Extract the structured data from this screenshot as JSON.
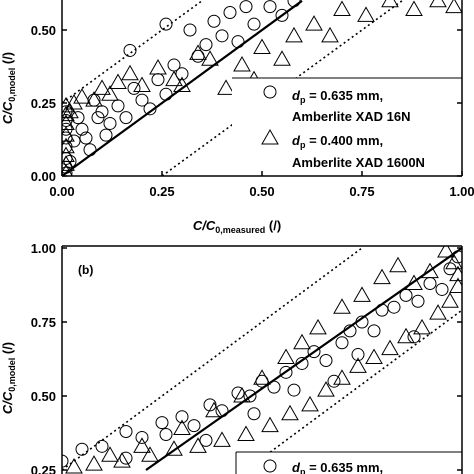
{
  "chart_data": [
    {
      "type": "scatter",
      "panel_label": "",
      "xlabel_parts": {
        "main": "C/C",
        "sub": "0,measured",
        "unit": " (/)"
      },
      "ylabel_parts": {
        "main": "C/C",
        "sub": "0,model",
        "unit": " (/)"
      },
      "xlim": [
        0,
        1
      ],
      "ylim": [
        0,
        0.6
      ],
      "xticks": [
        0,
        0.25,
        0.5,
        0.75,
        1
      ],
      "xtick_labels": [
        "0.00",
        "0.25",
        "0.50",
        "0.75",
        "1.00"
      ],
      "yticks": [
        0,
        0.25,
        0.5
      ],
      "ytick_labels": [
        "0.00",
        "0.25",
        "0.50"
      ],
      "lines": [
        {
          "style": "solid",
          "x": [
            0,
            0.6
          ],
          "y": [
            0,
            0.6
          ]
        },
        {
          "style": "dotted",
          "x": [
            0,
            0.35
          ],
          "y": [
            0.25,
            0.6
          ]
        },
        {
          "style": "dotted",
          "x": [
            0.25,
            0.85
          ],
          "y": [
            0,
            0.6
          ]
        }
      ],
      "legend": {
        "placement": "right",
        "entries": [
          {
            "marker": "circle",
            "d": "d",
            "sub": "p",
            "value": " = 0.635 mm,",
            "resin": "Amberlite XAD 16N"
          },
          {
            "marker": "triangle",
            "d": "d",
            "sub": "p",
            "value": " = 0.400 mm,",
            "resin": "Amberlite XAD 1600N"
          }
        ]
      },
      "series": [
        {
          "marker": "circle",
          "points": [
            [
              0.01,
              0.01
            ],
            [
              0.01,
              0.03
            ],
            [
              0.01,
              0.06
            ],
            [
              0.01,
              0.1
            ],
            [
              0.01,
              0.13
            ],
            [
              0.01,
              0.16
            ],
            [
              0.01,
              0.19
            ],
            [
              0.01,
              0.22
            ],
            [
              0.02,
              0.05
            ],
            [
              0.03,
              0.12
            ],
            [
              0.04,
              0.2
            ],
            [
              0.05,
              0.16
            ],
            [
              0.06,
              0.13
            ],
            [
              0.07,
              0.09
            ],
            [
              0.08,
              0.26
            ],
            [
              0.09,
              0.2
            ],
            [
              0.1,
              0.22
            ],
            [
              0.11,
              0.14
            ],
            [
              0.12,
              0.18
            ],
            [
              0.14,
              0.24
            ],
            [
              0.16,
              0.2
            ],
            [
              0.18,
              0.3
            ],
            [
              0.2,
              0.26
            ],
            [
              0.22,
              0.23
            ],
            [
              0.24,
              0.33
            ],
            [
              0.26,
              0.28
            ],
            [
              0.28,
              0.38
            ],
            [
              0.3,
              0.35
            ],
            [
              0.32,
              0.5
            ],
            [
              0.34,
              0.41
            ],
            [
              0.36,
              0.45
            ],
            [
              0.38,
              0.53
            ],
            [
              0.4,
              0.48
            ],
            [
              0.42,
              0.56
            ],
            [
              0.44,
              0.46
            ],
            [
              0.46,
              0.58
            ],
            [
              0.48,
              0.52
            ],
            [
              0.52,
              0.58
            ],
            [
              0.55,
              0.55
            ],
            [
              0.58,
              0.6
            ],
            [
              0.17,
              0.43
            ],
            [
              0.26,
              0.52
            ]
          ]
        },
        {
          "marker": "triangle",
          "points": [
            [
              0.01,
              0.01
            ],
            [
              0.01,
              0.04
            ],
            [
              0.01,
              0.07
            ],
            [
              0.01,
              0.1
            ],
            [
              0.01,
              0.14
            ],
            [
              0.01,
              0.18
            ],
            [
              0.01,
              0.21
            ],
            [
              0.01,
              0.24
            ],
            [
              0.02,
              0.22
            ],
            [
              0.03,
              0.25
            ],
            [
              0.05,
              0.27
            ],
            [
              0.08,
              0.26
            ],
            [
              0.1,
              0.3
            ],
            [
              0.12,
              0.28
            ],
            [
              0.14,
              0.32
            ],
            [
              0.17,
              0.35
            ],
            [
              0.2,
              0.31
            ],
            [
              0.24,
              0.37
            ],
            [
              0.28,
              0.33
            ],
            [
              0.3,
              0.31
            ],
            [
              0.34,
              0.42
            ],
            [
              0.37,
              0.4
            ],
            [
              0.41,
              0.3
            ],
            [
              0.45,
              0.38
            ],
            [
              0.48,
              0.33
            ],
            [
              0.5,
              0.44
            ],
            [
              0.55,
              0.4
            ],
            [
              0.58,
              0.48
            ],
            [
              0.63,
              0.52
            ],
            [
              0.67,
              0.48
            ],
            [
              0.7,
              0.57
            ],
            [
              0.76,
              0.55
            ],
            [
              0.82,
              0.6
            ],
            [
              0.88,
              0.57
            ],
            [
              0.94,
              0.6
            ],
            [
              0.98,
              0.58
            ]
          ]
        }
      ]
    },
    {
      "type": "scatter",
      "panel_label": "(b)",
      "xlabel_parts": {
        "main": "",
        "sub": "",
        "unit": ""
      },
      "ylabel_parts": {
        "main": "C/C",
        "sub": "0,model",
        "unit": " (/)"
      },
      "xlim": [
        0,
        1
      ],
      "ylim": [
        0.25,
        1
      ],
      "xticks": [],
      "xtick_labels": [],
      "yticks": [
        0.25,
        0.5,
        0.75,
        1
      ],
      "ytick_labels": [
        "0.25",
        "0.50",
        "0.75",
        "1.00"
      ],
      "lines": [
        {
          "style": "solid",
          "x": [
            0.21,
            1
          ],
          "y": [
            0.25,
            1
          ]
        },
        {
          "style": "dotted",
          "x": [
            0,
            0.75
          ],
          "y": [
            0.25,
            1
          ]
        },
        {
          "style": "dotted",
          "x": [
            0.46,
            1
          ],
          "y": [
            0.25,
            0.79
          ]
        }
      ],
      "legend": {
        "placement": "bottom-right",
        "entries": [
          {
            "marker": "circle",
            "d": "d",
            "sub": "p",
            "value": " = 0.635 mm,",
            "resin": ""
          }
        ]
      },
      "series": [
        {
          "marker": "circle",
          "points": [
            [
              0.0,
              0.28
            ],
            [
              0.05,
              0.32
            ],
            [
              0.1,
              0.33
            ],
            [
              0.16,
              0.38
            ],
            [
              0.2,
              0.36
            ],
            [
              0.25,
              0.41
            ],
            [
              0.3,
              0.43
            ],
            [
              0.33,
              0.4
            ],
            [
              0.37,
              0.47
            ],
            [
              0.4,
              0.45
            ],
            [
              0.44,
              0.51
            ],
            [
              0.47,
              0.5
            ],
            [
              0.5,
              0.55
            ],
            [
              0.53,
              0.53
            ],
            [
              0.56,
              0.58
            ],
            [
              0.6,
              0.61
            ],
            [
              0.63,
              0.65
            ],
            [
              0.66,
              0.62
            ],
            [
              0.7,
              0.68
            ],
            [
              0.72,
              0.72
            ],
            [
              0.75,
              0.75
            ],
            [
              0.78,
              0.72
            ],
            [
              0.8,
              0.79
            ],
            [
              0.83,
              0.8
            ],
            [
              0.86,
              0.84
            ],
            [
              0.89,
              0.82
            ],
            [
              0.92,
              0.88
            ],
            [
              0.95,
              0.86
            ],
            [
              0.97,
              0.93
            ],
            [
              0.99,
              0.97
            ],
            [
              0.16,
              0.29
            ],
            [
              0.26,
              0.37
            ],
            [
              0.36,
              0.35
            ],
            [
              0.48,
              0.44
            ],
            [
              0.58,
              0.52
            ],
            [
              0.68,
              0.55
            ],
            [
              0.74,
              0.64
            ],
            [
              0.88,
              0.7
            ]
          ]
        },
        {
          "marker": "triangle",
          "points": [
            [
              0.03,
              0.26
            ],
            [
              0.08,
              0.27
            ],
            [
              0.15,
              0.28
            ],
            [
              0.22,
              0.3
            ],
            [
              0.28,
              0.32
            ],
            [
              0.34,
              0.33
            ],
            [
              0.4,
              0.35
            ],
            [
              0.46,
              0.37
            ],
            [
              0.52,
              0.4
            ],
            [
              0.57,
              0.44
            ],
            [
              0.62,
              0.47
            ],
            [
              0.66,
              0.52
            ],
            [
              0.7,
              0.56
            ],
            [
              0.74,
              0.6
            ],
            [
              0.78,
              0.63
            ],
            [
              0.82,
              0.66
            ],
            [
              0.86,
              0.7
            ],
            [
              0.9,
              0.73
            ],
            [
              0.94,
              0.78
            ],
            [
              0.97,
              0.82
            ],
            [
              0.99,
              0.87
            ],
            [
              0.99,
              0.91
            ],
            [
              0.98,
              0.95
            ],
            [
              0.96,
              0.99
            ],
            [
              0.92,
              0.92
            ],
            [
              0.88,
              0.88
            ],
            [
              0.84,
              0.94
            ],
            [
              0.8,
              0.9
            ],
            [
              0.75,
              0.84
            ],
            [
              0.7,
              0.8
            ],
            [
              0.64,
              0.73
            ],
            [
              0.6,
              0.68
            ],
            [
              0.56,
              0.63
            ],
            [
              0.5,
              0.56
            ],
            [
              0.45,
              0.5
            ],
            [
              0.38,
              0.45
            ],
            [
              0.3,
              0.39
            ],
            [
              0.2,
              0.33
            ],
            [
              0.12,
              0.3
            ]
          ]
        }
      ]
    }
  ]
}
